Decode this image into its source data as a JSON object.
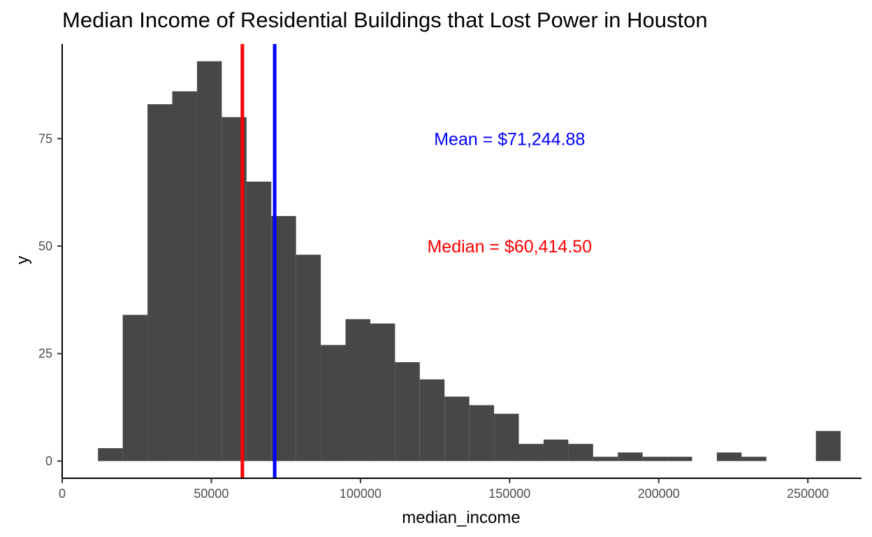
{
  "chart_data": {
    "type": "histogram",
    "title": "Median Income of Residential Buildings that Lost Power in Houston",
    "xlabel": "median_income",
    "ylabel": "y",
    "xlim": [
      0,
      268000
    ],
    "ylim": [
      -4,
      97
    ],
    "x_ticks": [
      0,
      50000,
      100000,
      150000,
      200000,
      250000
    ],
    "x_tick_labels": [
      "0",
      "50000",
      "100000",
      "150000",
      "200000",
      "250000"
    ],
    "y_ticks": [
      0,
      25,
      50,
      75
    ],
    "y_tick_labels": [
      "0",
      "25",
      "50",
      "75"
    ],
    "grid": false,
    "legend": "none",
    "bar_color": "#474747",
    "bins": [
      {
        "x0": 12000,
        "x1": 20300,
        "count": 3
      },
      {
        "x0": 20300,
        "x1": 28600,
        "count": 34
      },
      {
        "x0": 28600,
        "x1": 36900,
        "count": 83
      },
      {
        "x0": 36900,
        "x1": 45200,
        "count": 86
      },
      {
        "x0": 45200,
        "x1": 53500,
        "count": 93
      },
      {
        "x0": 53500,
        "x1": 61800,
        "count": 80
      },
      {
        "x0": 61800,
        "x1": 70100,
        "count": 65
      },
      {
        "x0": 70100,
        "x1": 78400,
        "count": 57
      },
      {
        "x0": 78400,
        "x1": 86700,
        "count": 48
      },
      {
        "x0": 86700,
        "x1": 95000,
        "count": 27
      },
      {
        "x0": 95000,
        "x1": 103300,
        "count": 33
      },
      {
        "x0": 103300,
        "x1": 111600,
        "count": 32
      },
      {
        "x0": 111600,
        "x1": 119900,
        "count": 23
      },
      {
        "x0": 119900,
        "x1": 128200,
        "count": 19
      },
      {
        "x0": 128200,
        "x1": 136500,
        "count": 15
      },
      {
        "x0": 136500,
        "x1": 144800,
        "count": 13
      },
      {
        "x0": 144800,
        "x1": 153100,
        "count": 11
      },
      {
        "x0": 153100,
        "x1": 161400,
        "count": 4
      },
      {
        "x0": 161400,
        "x1": 169700,
        "count": 5
      },
      {
        "x0": 169700,
        "x1": 178000,
        "count": 4
      },
      {
        "x0": 178000,
        "x1": 186300,
        "count": 1
      },
      {
        "x0": 186300,
        "x1": 194600,
        "count": 2
      },
      {
        "x0": 194600,
        "x1": 202900,
        "count": 1
      },
      {
        "x0": 202900,
        "x1": 211200,
        "count": 1
      },
      {
        "x0": 211200,
        "x1": 219500,
        "count": 0
      },
      {
        "x0": 219500,
        "x1": 227800,
        "count": 2
      },
      {
        "x0": 227800,
        "x1": 236100,
        "count": 1
      },
      {
        "x0": 236100,
        "x1": 244400,
        "count": 0
      },
      {
        "x0": 244400,
        "x1": 252700,
        "count": 0
      },
      {
        "x0": 252700,
        "x1": 261000,
        "count": 7
      }
    ],
    "reference_lines": [
      {
        "label": "Median = $60,414.50",
        "value": 60414.5,
        "color": "#ff0000",
        "label_x": 150000,
        "label_y": 50
      },
      {
        "label": "Mean = $71,244.88",
        "value": 71244.88,
        "color": "#0000ff",
        "label_x": 150000,
        "label_y": 75
      }
    ]
  }
}
